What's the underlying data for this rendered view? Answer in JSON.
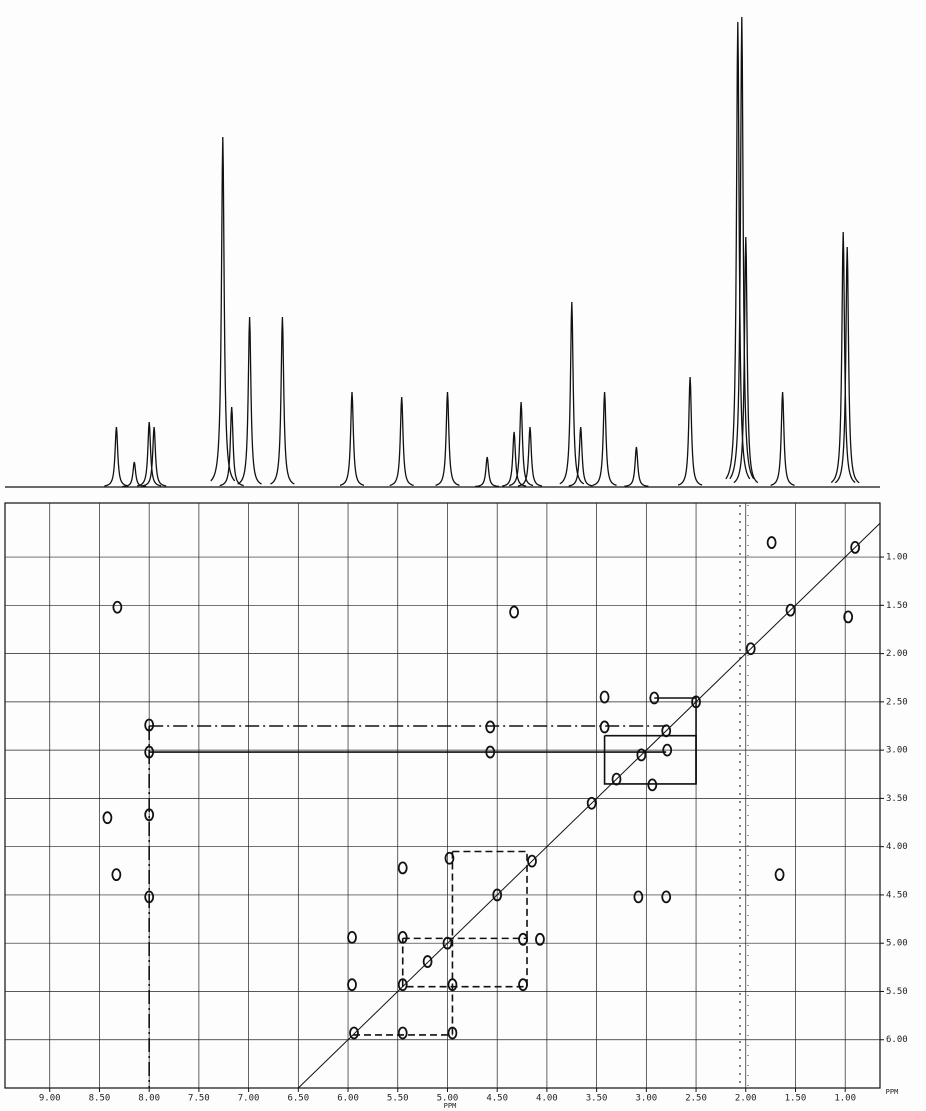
{
  "chart_data": {
    "type": "cosy",
    "x_label": "PPM",
    "y_label": "PPM",
    "xlim": [
      9.45,
      0.65
    ],
    "ylim": [
      0.44,
      6.5
    ],
    "xticks": [
      {
        "value": 9,
        "label": "9.00"
      },
      {
        "value": 8.5,
        "label": "8.50"
      },
      {
        "value": 8,
        "label": "8.00"
      },
      {
        "value": 7.5,
        "label": "7.50"
      },
      {
        "value": 7,
        "label": "7.00"
      },
      {
        "value": 6.5,
        "label": "6.50"
      },
      {
        "value": 6,
        "label": "6.00"
      },
      {
        "value": 5.5,
        "label": "5.50"
      },
      {
        "value": 5,
        "label": "5.00"
      },
      {
        "value": 4.5,
        "label": "4.50"
      },
      {
        "value": 4,
        "label": "4.00"
      },
      {
        "value": 3.5,
        "label": "3.50"
      },
      {
        "value": 3,
        "label": "3.00"
      },
      {
        "value": 2.5,
        "label": "2.50"
      },
      {
        "value": 2,
        "label": "2.00"
      },
      {
        "value": 1.5,
        "label": "1.50"
      },
      {
        "value": 1,
        "label": "1.00"
      }
    ],
    "yticks": [
      {
        "value": 1,
        "label": "1.00"
      },
      {
        "value": 1.5,
        "label": "1.50"
      },
      {
        "value": 2,
        "label": "2.00"
      },
      {
        "value": 2.5,
        "label": "2.50"
      },
      {
        "value": 3,
        "label": "3.00"
      },
      {
        "value": 3.5,
        "label": "3.50"
      },
      {
        "value": 4,
        "label": "4.00"
      },
      {
        "value": 4.5,
        "label": "4.50"
      },
      {
        "value": 5,
        "label": "5.00"
      },
      {
        "value": 5.5,
        "label": "5.50"
      },
      {
        "value": 6,
        "label": "6.00"
      }
    ],
    "grid": true,
    "color": "#111111",
    "spectrum": {
      "x": [
        8.33,
        8.15,
        8.0,
        7.95,
        7.26,
        7.17,
        6.99,
        6.66,
        5.96,
        5.46,
        5.0,
        4.6,
        4.33,
        4.26,
        4.17,
        3.75,
        3.66,
        3.42,
        3.1,
        2.56,
        2.08,
        2.04,
        2.0,
        1.63,
        1.02,
        0.98
      ],
      "heights": [
        60,
        25,
        65,
        60,
        350,
        80,
        170,
        170,
        95,
        90,
        95,
        30,
        55,
        85,
        60,
        185,
        60,
        95,
        40,
        110,
        465,
        470,
        250,
        95,
        255,
        240
      ]
    },
    "cross_peaks": {
      "x": [
        0.9,
        1.55,
        1.95,
        2.5,
        2.8,
        3.05,
        3.3,
        3.55,
        4.15,
        4.5,
        5.0,
        8.0,
        8.0,
        8.0,
        8.0,
        8.32,
        8.42,
        8.33,
        4.57,
        4.57,
        4.33,
        3.42,
        3.42,
        2.92,
        2.79,
        2.94,
        3.08,
        2.8,
        5.45,
        4.98,
        5.96,
        5.45,
        4.24,
        4.07,
        5.96,
        5.45,
        4.95,
        4.24,
        5.94,
        5.45,
        4.95,
        5.2,
        0.97,
        1.74,
        1.66
      ],
      "y": [
        0.9,
        1.55,
        1.95,
        2.5,
        2.8,
        3.05,
        3.3,
        3.55,
        4.15,
        4.5,
        5.0,
        2.74,
        3.02,
        3.67,
        4.52,
        1.52,
        3.7,
        4.29,
        2.76,
        3.02,
        1.57,
        2.45,
        2.76,
        2.46,
        3.0,
        3.36,
        4.52,
        4.52,
        4.22,
        4.12,
        4.94,
        4.94,
        4.96,
        4.96,
        5.43,
        5.43,
        5.43,
        5.43,
        5.93,
        5.93,
        5.93,
        5.19,
        1.62,
        0.85,
        4.29
      ]
    },
    "guides": [
      {
        "style": "dashdot",
        "x": [
          8.0,
          2.8
        ],
        "y": [
          2.75,
          2.75
        ]
      },
      {
        "style": "solid",
        "x": [
          8.0,
          2.8
        ],
        "y": [
          3.02,
          3.02
        ]
      },
      {
        "style": "dashdot",
        "x": [
          8.0,
          8.0
        ],
        "y": [
          2.75,
          6.5
        ]
      },
      {
        "style": "solid",
        "x": [
          3.42,
          2.5,
          2.5,
          3.42,
          3.42
        ],
        "y": [
          2.85,
          2.85,
          3.35,
          3.35,
          2.85
        ]
      },
      {
        "style": "solid",
        "x": [
          2.92,
          2.5,
          2.5
        ],
        "y": [
          2.46,
          2.46,
          3.35
        ]
      },
      {
        "style": "dashed",
        "x": [
          5.45,
          4.2,
          4.2,
          5.45,
          5.45
        ],
        "y": [
          4.95,
          4.95,
          5.45,
          5.45,
          4.95
        ]
      },
      {
        "style": "dashed",
        "x": [
          4.95,
          4.95
        ],
        "y": [
          4.05,
          5.95
        ]
      },
      {
        "style": "dashed",
        "x": [
          5.95,
          4.95
        ],
        "y": [
          5.95,
          5.95
        ]
      },
      {
        "style": "dashed",
        "x": [
          4.95,
          4.2,
          4.2
        ],
        "y": [
          4.05,
          4.05,
          4.95
        ]
      }
    ]
  }
}
